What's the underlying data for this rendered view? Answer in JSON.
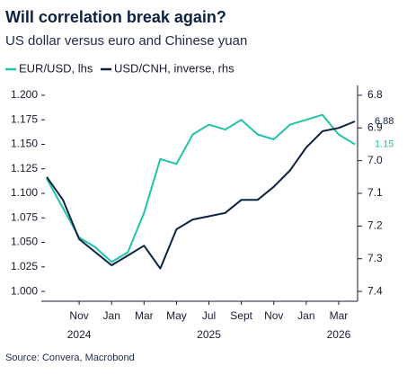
{
  "chart_data": {
    "type": "line",
    "title": "Will correlation break again?",
    "subtitle": "US dollar versus euro and Chinese yuan",
    "source": "Source: Convera, Macrobond",
    "x": [
      "2024-09",
      "2024-10",
      "2024-11",
      "2024-12",
      "2025-01",
      "2025-02",
      "2025-03",
      "2025-04",
      "2025-05",
      "2025-06",
      "2025-07",
      "2025-08",
      "2025-09",
      "2025-10",
      "2025-11",
      "2025-12",
      "2026-01",
      "2026-02",
      "2026-03",
      "2026-04"
    ],
    "xlim": [
      "2024-09",
      "2026-04"
    ],
    "xticks": [
      {
        "value": "2024-11",
        "label": "Nov"
      },
      {
        "value": "2025-01",
        "label": "Jan"
      },
      {
        "value": "2025-03",
        "label": "Mar"
      },
      {
        "value": "2025-05",
        "label": "May"
      },
      {
        "value": "2025-07",
        "label": "Jul"
      },
      {
        "value": "2025-09",
        "label": "Sept"
      },
      {
        "value": "2025-11",
        "label": "Nov"
      },
      {
        "value": "2026-01",
        "label": "Jan"
      },
      {
        "value": "2026-03",
        "label": "Mar"
      }
    ],
    "x_year_labels": [
      {
        "value": "2024-11",
        "label": "2024"
      },
      {
        "value": "2025-07",
        "label": "2025"
      },
      {
        "value": "2026-03",
        "label": "2026"
      }
    ],
    "ylim": [
      0.99,
      1.21
    ],
    "yticks": [
      {
        "value": 1,
        "label": "1.000"
      },
      {
        "value": 1.025,
        "label": "1.025"
      },
      {
        "value": 1.05,
        "label": "1.050"
      },
      {
        "value": 1.075,
        "label": "1.075"
      },
      {
        "value": 1.1,
        "label": "1.100"
      },
      {
        "value": 1.125,
        "label": "1.125"
      },
      {
        "value": 1.15,
        "label": "1.150"
      },
      {
        "value": 1.175,
        "label": "1.175"
      },
      {
        "value": 1.2,
        "label": "1.200"
      }
    ],
    "y2lim": [
      7.43,
      6.77
    ],
    "y2ticks": [
      6.8,
      6.9,
      {
        "value": 7,
        "label": "7.0"
      },
      7.1,
      7.2,
      7.3,
      7.4
    ],
    "grid": false,
    "series": [
      {
        "name": "EUR/USD, lhs",
        "color": "#22c3a6",
        "values": [
          1.115,
          1.085,
          1.055,
          1.045,
          1.03,
          1.04,
          1.08,
          1.135,
          1.13,
          1.16,
          1.17,
          1.165,
          1.175,
          1.16,
          1.155,
          1.17,
          1.175,
          1.18,
          1.16,
          1.15
        ]
      },
      {
        "name": "USD/CNH, inverse, rhs",
        "color": "#0d2240",
        "axis": "y2",
        "values": [
          7.05,
          7.12,
          7.24,
          7.28,
          7.32,
          7.29,
          7.26,
          7.33,
          7.21,
          7.18,
          7.17,
          7.16,
          7.12,
          7.12,
          7.08,
          7.03,
          6.96,
          6.91,
          6.9,
          6.88
        ]
      }
    ],
    "annotations": [
      {
        "text": "6.88",
        "y": 6.88,
        "axis": "y2",
        "color": "#0d2240"
      },
      {
        "text": "1.15",
        "y": 1.15,
        "axis": "y",
        "color": "#22c3a6"
      }
    ]
  }
}
